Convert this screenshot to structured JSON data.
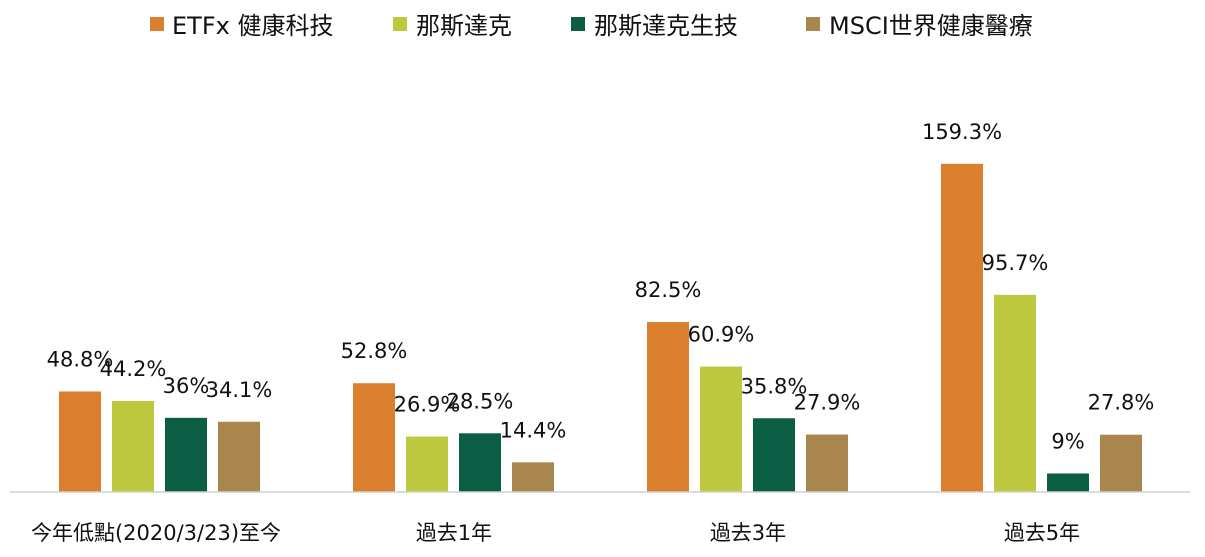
{
  "chart_data": {
    "type": "bar",
    "categories": [
      "今年低點(2020/3/23)至今",
      "過去1年",
      "過去3年",
      "過去5年"
    ],
    "series": [
      {
        "name": "ETFx 健康科技",
        "color": "#DA7F2E",
        "values": [
          48.8,
          52.8,
          82.5,
          159.3
        ],
        "labels": [
          "48.8%",
          "52.8%",
          "82.5%",
          "159.3%"
        ]
      },
      {
        "name": "那斯達克",
        "color": "#BEC83E",
        "values": [
          44.2,
          26.9,
          60.9,
          95.7
        ],
        "labels": [
          "44.2%",
          "26.9%",
          "60.9%",
          "95.7%"
        ]
      },
      {
        "name": "那斯達克生技",
        "color": "#0B5E44",
        "values": [
          36,
          28.5,
          35.8,
          9
        ],
        "labels": [
          "36%",
          "28.5%",
          "35.8%",
          "9%"
        ]
      },
      {
        "name": "MSCI世界健康醫療",
        "color": "#A8864E",
        "values": [
          34.1,
          14.4,
          27.9,
          27.8
        ],
        "labels": [
          "34.1%",
          "14.4%",
          "27.9%",
          "27.8%"
        ]
      }
    ],
    "title": "",
    "xlabel": "",
    "ylabel": "",
    "ylim": [
      0,
      160
    ],
    "grid": false,
    "legend": "top"
  }
}
